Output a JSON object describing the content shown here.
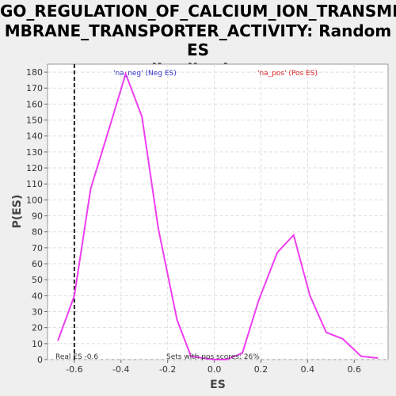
{
  "chart_data": {
    "type": "line",
    "title": "GO_REGULATION_OF_CALCIUM_ION_TRANSMEMBRANE_TRANSPORTER_ACTIVITY: Random ES distribution",
    "title_lines": [
      "GO_REGULATION_OF_CALCIUM_ION_TRANSME",
      "MBRANE_TRANSPORTER_ACTIVITY: Random ES",
      "distribution"
    ],
    "xlabel": "ES",
    "ylabel": "P(ES)",
    "xlim": [
      -0.715,
      0.745
    ],
    "ylim": [
      0,
      185
    ],
    "xticks": [
      -0.6,
      -0.4,
      -0.2,
      0.0,
      0.2,
      0.4,
      0.6
    ],
    "xtick_labels": [
      "-0.6",
      "-0.4",
      "-0.2",
      "0.0",
      "0.2",
      "0.4",
      "0.6"
    ],
    "yticks": [
      0,
      10,
      20,
      30,
      40,
      50,
      60,
      70,
      80,
      90,
      100,
      110,
      120,
      130,
      140,
      150,
      160,
      170,
      180
    ],
    "grid": true,
    "series": [
      {
        "color": "#ee3ef0",
        "x": [
          -0.67,
          -0.6,
          -0.53,
          -0.45,
          -0.38,
          -0.31,
          -0.24,
          -0.16,
          -0.1,
          0.0,
          0.05,
          0.12,
          0.19,
          0.27,
          0.34,
          0.41,
          0.48,
          0.55,
          0.63,
          0.7
        ],
        "y": [
          12,
          40,
          107,
          145,
          179,
          152,
          82,
          25,
          2,
          0,
          0,
          4,
          37,
          67,
          78,
          40,
          17,
          13,
          2,
          1
        ]
      }
    ],
    "real_es": -0.6,
    "annotations": {
      "neg_label": "'na_neg' (Neg ES)",
      "pos_label": "'na_pos' (Pos ES)",
      "real_es_text": "Real ES -0.6",
      "pos_scores_text": "Sets with pos scores: 26%"
    },
    "colors": {
      "line": "#ee3ef0",
      "neg": "#3333cc",
      "pos": "#dd2222",
      "background": "#efefef",
      "plot_bg": "#ffffff"
    }
  }
}
